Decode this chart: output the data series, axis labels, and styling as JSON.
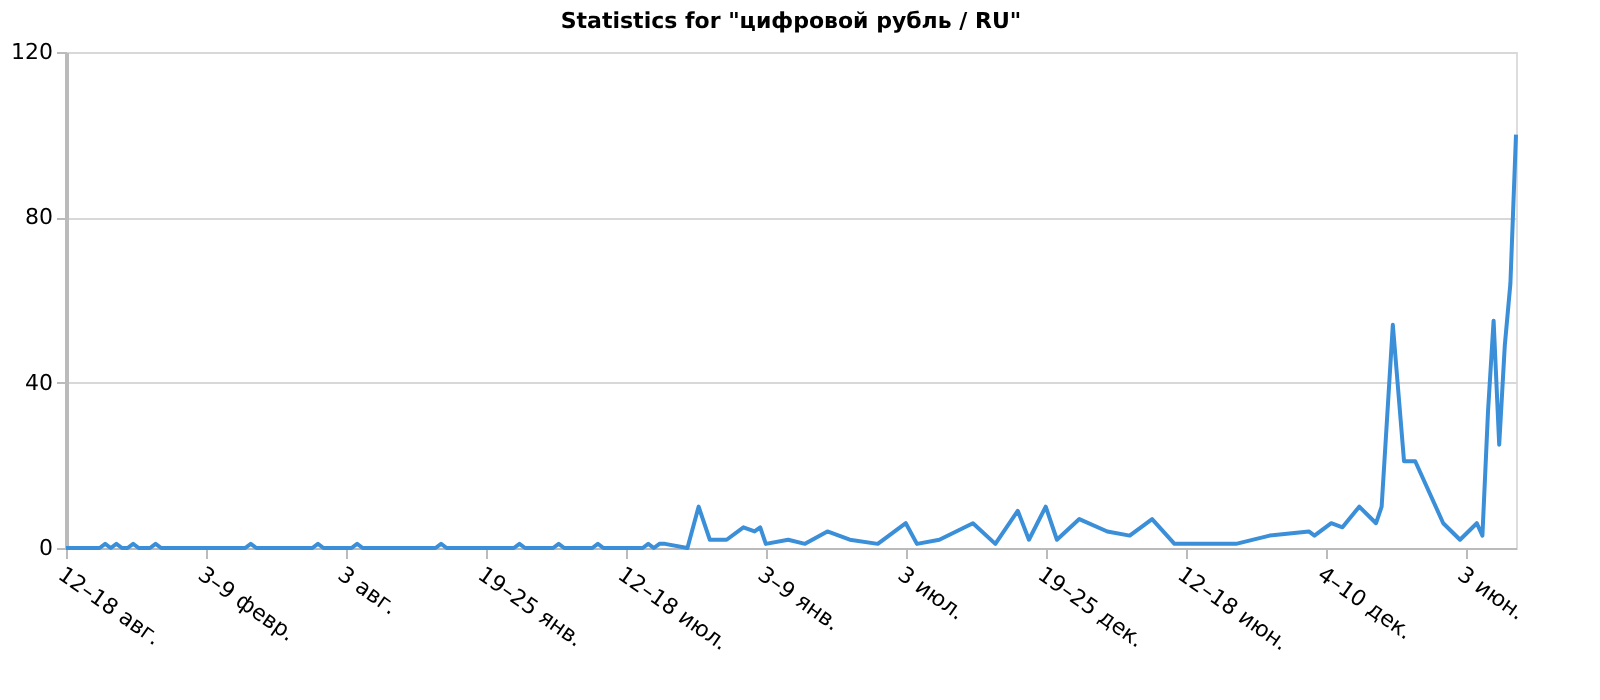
{
  "chart_data": {
    "type": "line",
    "title": "Statistics for \"цифровой рубль / RU\"",
    "x": [
      "2018-08-12",
      "2018-09-23",
      "2018-09-30",
      "2018-10-07",
      "2018-10-14",
      "2018-10-21",
      "2018-10-28",
      "2018-11-04",
      "2018-11-11",
      "2018-11-25",
      "2018-12-02",
      "2018-12-09",
      "2019-03-24",
      "2019-03-31",
      "2019-04-07",
      "2019-06-16",
      "2019-06-23",
      "2019-06-30",
      "2019-08-04",
      "2019-08-11",
      "2019-08-18",
      "2019-11-17",
      "2019-11-24",
      "2019-12-01",
      "2020-02-23",
      "2020-03-01",
      "2020-03-08",
      "2020-04-12",
      "2020-04-19",
      "2020-04-26",
      "2020-05-31",
      "2020-06-07",
      "2020-06-14",
      "2020-08-02",
      "2020-08-09",
      "2020-08-16",
      "2020-08-23",
      "2020-08-30",
      "2020-09-27",
      "2020-10-11",
      "2020-10-25",
      "2020-11-15",
      "2020-12-06",
      "2020-12-20",
      "2020-12-27",
      "2021-01-03",
      "2021-01-31",
      "2021-02-21",
      "2021-03-21",
      "2021-04-18",
      "2021-05-23",
      "2021-06-27",
      "2021-07-11",
      "2021-08-08",
      "2021-09-19",
      "2021-10-17",
      "2021-11-14",
      "2021-11-28",
      "2021-12-19",
      "2022-01-02",
      "2022-01-30",
      "2022-03-06",
      "2022-04-03",
      "2022-05-01",
      "2022-05-29",
      "2022-07-03",
      "2022-08-14",
      "2022-09-25",
      "2022-11-13",
      "2022-11-20",
      "2022-12-11",
      "2022-12-25",
      "2023-01-15",
      "2023-02-05",
      "2023-02-12",
      "2023-02-26",
      "2023-03-12",
      "2023-03-26",
      "2023-04-30",
      "2023-05-21",
      "2023-06-11",
      "2023-06-18",
      "2023-06-25",
      "2023-07-02",
      "2023-07-09",
      "2023-07-16",
      "2023-07-23",
      "2023-07-30"
    ],
    "series": [
      {
        "color": "#3a8fd8",
        "values": [
          0,
          0,
          1,
          0,
          1,
          0,
          0,
          1,
          0,
          0,
          1,
          0,
          0,
          1,
          0,
          0,
          1,
          0,
          0,
          1,
          0,
          0,
          1,
          0,
          0,
          1,
          0,
          0,
          1,
          0,
          0,
          1,
          0,
          0,
          1,
          0,
          1,
          1,
          0,
          10,
          2,
          2,
          5,
          4,
          5,
          1,
          2,
          1,
          4,
          2,
          1,
          6,
          1,
          2,
          6,
          1,
          9,
          2,
          10,
          2,
          7,
          4,
          3,
          7,
          1,
          1,
          1,
          3,
          4,
          3,
          6,
          5,
          10,
          6,
          10,
          54,
          21,
          21,
          6,
          2,
          6,
          3,
          33,
          55,
          25,
          49,
          64,
          100
        ]
      }
    ],
    "xlim": [
      "2018-08-12",
      "2023-07-30"
    ],
    "xticks": [
      {
        "value": "2018-08-12",
        "label": "12–18 авг."
      },
      {
        "value": "2019-02-03",
        "label": "3–9 февр."
      },
      {
        "value": "2019-07-28",
        "label": "3 авг."
      },
      {
        "value": "2020-01-19",
        "label": "19–25 янв."
      },
      {
        "value": "2020-07-12",
        "label": "12–18 июл."
      },
      {
        "value": "2021-01-03",
        "label": "3–9 янв."
      },
      {
        "value": "2021-06-27",
        "label": "3 июл."
      },
      {
        "value": "2021-12-19",
        "label": "19–25 дек."
      },
      {
        "value": "2022-06-12",
        "label": "12–18 июн."
      },
      {
        "value": "2022-12-04",
        "label": "4–10 дек."
      },
      {
        "value": "2023-05-28",
        "label": "3 июн."
      }
    ],
    "ylim": [
      0,
      120
    ],
    "yticks": [
      0,
      40,
      80,
      120
    ],
    "grid": "y"
  }
}
